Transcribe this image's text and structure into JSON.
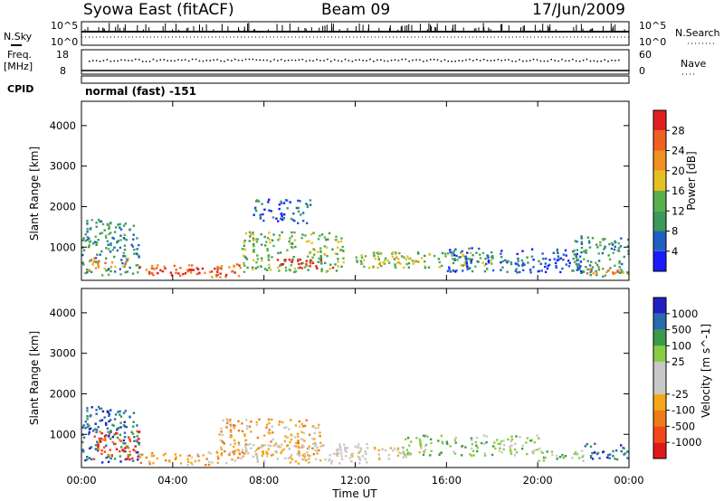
{
  "header": {
    "station": "Syowa East (fitACF)",
    "beam": "Beam 09",
    "date": "17/Jun/2009"
  },
  "strip_labels": {
    "nsky": "N.Sky",
    "freq_line1": "Freq.",
    "freq_line2": "[MHz]",
    "cpid": "CPID",
    "nsearch": "N.Search",
    "nave": "Nave",
    "cpid_value": "normal (fast) -151"
  },
  "strip_ticks": {
    "noise_top": "10^5",
    "noise_bottom": "10^0",
    "freq_top": "18",
    "freq_bottom": "8",
    "nave_top": "60",
    "nave_bottom": "0"
  },
  "colors": {
    "power": [
      "#1a1aff",
      "#2060c0",
      "#3a9a5a",
      "#58b04a",
      "#e6c020",
      "#f09020",
      "#f06020",
      "#e02020"
    ],
    "velocity": [
      "#e01818",
      "#f04818",
      "#f07a18",
      "#f4a818",
      "#c8c8c8",
      "#c8c8c8",
      "#88cc44",
      "#3a9a4a",
      "#2a6ab0",
      "#2020c0"
    ]
  },
  "chart_data": [
    {
      "type": "heatmap",
      "panel": "power",
      "ylabel": "Slant Range [km]",
      "xlabel": "Time UT",
      "colorbar_label": "Power [dB]",
      "colorbar_ticks": [
        "4",
        "8",
        "12",
        "16",
        "20",
        "24",
        "28"
      ],
      "xlim_hours": [
        0,
        24
      ],
      "ylim_km": [
        180,
        4600
      ],
      "x_ticks": [
        "00:00",
        "04:00",
        "08:00",
        "12:00",
        "16:00",
        "20:00",
        "00:00"
      ],
      "y_ticks": [
        "1000",
        "2000",
        "3000",
        "4000"
      ],
      "regions": [
        {
          "t": [
            0.0,
            2.5
          ],
          "r": [
            300,
            1700
          ],
          "level": 2
        },
        {
          "t": [
            0.3,
            2.0
          ],
          "r": [
            450,
            750
          ],
          "level": 5
        },
        {
          "t": [
            2.5,
            7.0
          ],
          "r": [
            280,
            600
          ],
          "level": 6
        },
        {
          "t": [
            3.0,
            6.0
          ],
          "r": [
            350,
            500
          ],
          "level": 7
        },
        {
          "t": [
            7.0,
            11.5
          ],
          "r": [
            400,
            1400
          ],
          "level": 3
        },
        {
          "t": [
            8.5,
            11.0
          ],
          "r": [
            500,
            750
          ],
          "level": 7
        },
        {
          "t": [
            7.5,
            10.0
          ],
          "r": [
            1600,
            2200
          ],
          "level": 1
        },
        {
          "t": [
            12.0,
            18.0
          ],
          "r": [
            500,
            900
          ],
          "level": 3
        },
        {
          "t": [
            12.5,
            15.0
          ],
          "r": [
            600,
            800
          ],
          "level": 4
        },
        {
          "t": [
            16.0,
            22.0
          ],
          "r": [
            400,
            1000
          ],
          "level": 1
        },
        {
          "t": [
            21.5,
            24.0
          ],
          "r": [
            300,
            1300
          ],
          "level": 2
        },
        {
          "t": [
            22.0,
            24.0
          ],
          "r": [
            350,
            550
          ],
          "level": 5
        }
      ]
    },
    {
      "type": "heatmap",
      "panel": "velocity",
      "ylabel": "Slant Range [km]",
      "xlabel": "Time UT",
      "colorbar_label": "Velocity [m s^-1]",
      "colorbar_ticks": [
        "1000",
        "500",
        "100",
        "25",
        "-25",
        "-100",
        "-500",
        "-1000"
      ],
      "xlim_hours": [
        0,
        24
      ],
      "ylim_km": [
        180,
        4600
      ],
      "x_ticks": [
        "00:00",
        "04:00",
        "08:00",
        "12:00",
        "16:00",
        "20:00",
        "00:00"
      ],
      "y_ticks": [
        "1000",
        "2000",
        "3000",
        "4000"
      ],
      "regions": [
        {
          "t": [
            0.0,
            2.5
          ],
          "r": [
            300,
            1700
          ],
          "level": 8
        },
        {
          "t": [
            0.5,
            2.5
          ],
          "r": [
            400,
            1100
          ],
          "level": 1
        },
        {
          "t": [
            2.5,
            7.0
          ],
          "r": [
            250,
            600
          ],
          "level": 3
        },
        {
          "t": [
            6.0,
            10.5
          ],
          "r": [
            500,
            1400
          ],
          "level": 3
        },
        {
          "t": [
            7.0,
            12.5
          ],
          "r": [
            300,
            800
          ],
          "level": 4
        },
        {
          "t": [
            11.0,
            15.0
          ],
          "r": [
            400,
            700
          ],
          "level": 4
        },
        {
          "t": [
            14.0,
            20.0
          ],
          "r": [
            500,
            1000
          ],
          "level": 6
        },
        {
          "t": [
            20.0,
            22.0
          ],
          "r": [
            350,
            700
          ],
          "level": 6
        },
        {
          "t": [
            22.0,
            24.0
          ],
          "r": [
            400,
            800
          ],
          "level": 8
        }
      ]
    }
  ]
}
